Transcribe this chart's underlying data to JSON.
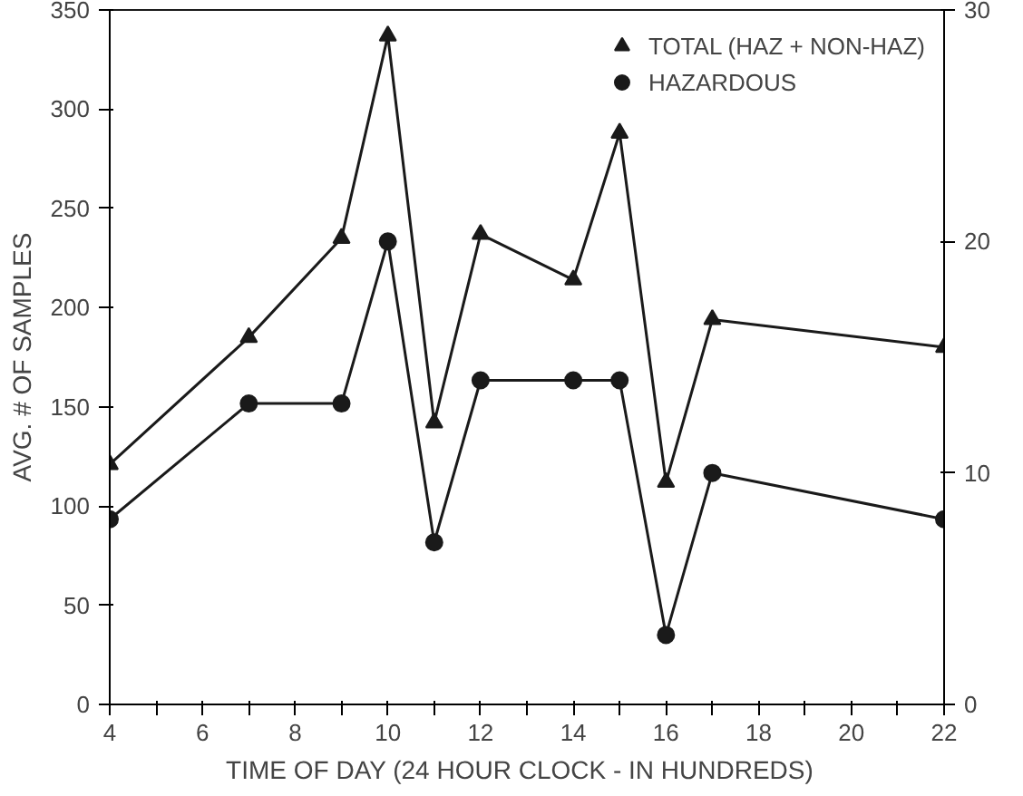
{
  "chart_data": {
    "type": "line",
    "xlabel": "TIME OF DAY  (24 HOUR CLOCK - IN  HUNDREDS)",
    "ylabel": "AVG. # OF SAMPLES",
    "xlim": [
      4,
      22
    ],
    "xticks": [
      4,
      {
        "value": 5,
        "label": null
      },
      6,
      {
        "value": 7,
        "label": null
      },
      8,
      {
        "value": 9,
        "label": null
      },
      10,
      {
        "value": 11,
        "label": null
      },
      12,
      {
        "value": 13,
        "label": null
      },
      14,
      {
        "value": 15,
        "label": null
      },
      16,
      {
        "value": 17,
        "label": null
      },
      18,
      {
        "value": 19,
        "label": null
      },
      20,
      {
        "value": 21,
        "label": null
      },
      22
    ],
    "ylim": [
      0,
      350
    ],
    "yticks": [
      0,
      50,
      100,
      150,
      200,
      250,
      300,
      350
    ],
    "y2lim": [
      0,
      30
    ],
    "y2ticks": [
      0,
      10,
      20,
      30
    ],
    "grid": false,
    "legend": "top right",
    "line_style": "solid",
    "series": [
      {
        "name": "TOTAL (HAZ + NON-HAZ)",
        "color": "#1a1a1a",
        "marker": "triangle",
        "x": [
          4,
          7,
          9,
          10,
          11,
          12,
          14,
          15,
          16,
          17,
          22
        ],
        "values": [
          121,
          185,
          235,
          337,
          142,
          237,
          214,
          288,
          112,
          194,
          180
        ]
      },
      {
        "name": "HAZARDOUS",
        "color": "#1a1a1a",
        "marker": "circle",
        "axis": "y2",
        "x": [
          4,
          7,
          9,
          10,
          11,
          12,
          14,
          15,
          16,
          17,
          22
        ],
        "values": [
          8,
          13,
          13,
          20,
          7,
          14,
          14,
          14,
          3,
          10,
          8
        ]
      }
    ]
  }
}
